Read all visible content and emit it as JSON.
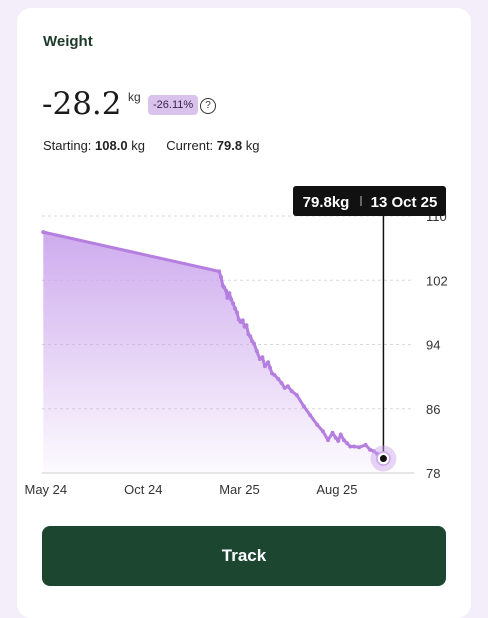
{
  "header": {
    "title": "Weight"
  },
  "summary": {
    "change": "-28.2",
    "unit": "kg",
    "change_percent": "-26.11%",
    "help_icon": "help-circle-icon",
    "starting_label": "Starting:",
    "starting_value": "108.0",
    "current_label": "Current:",
    "current_value": "79.8",
    "value_unit": "kg"
  },
  "tooltip": {
    "value": "79.8kg",
    "date": "13 Oct 25"
  },
  "colors": {
    "line": "#b57fe0",
    "fill": "#c9a2ec",
    "button": "#1c4630",
    "badge": "#d9c3ec",
    "title": "#1e3b29"
  },
  "chart_data": {
    "type": "area",
    "title": "",
    "xlabel": "",
    "ylabel": "",
    "ylim": [
      78,
      110
    ],
    "y_ticks": [
      110,
      102,
      94,
      86,
      78
    ],
    "x_tick_labels": [
      "May 24",
      "Oct 24",
      "Mar 25",
      "Aug 25"
    ],
    "x_tick_dates": [
      "2024-05-01",
      "2024-10-01",
      "2025-03-01",
      "2025-08-01"
    ],
    "x_range": [
      "2024-04-25",
      "2025-11-30"
    ],
    "series": [
      {
        "x": [
          "2024-04-27",
          "2025-01-28",
          "2025-01-31",
          "2025-02-03",
          "2025-02-05",
          "2025-02-08",
          "2025-02-10",
          "2025-02-13",
          "2025-02-16",
          "2025-02-19",
          "2025-02-22",
          "2025-02-25",
          "2025-02-28",
          "2025-03-03",
          "2025-03-06",
          "2025-03-09",
          "2025-03-12",
          "2025-03-15",
          "2025-03-18",
          "2025-03-21",
          "2025-03-24",
          "2025-03-28",
          "2025-04-02",
          "2025-04-06",
          "2025-04-10",
          "2025-04-15",
          "2025-04-18",
          "2025-04-21",
          "2025-04-25",
          "2025-05-01",
          "2025-05-06",
          "2025-05-11",
          "2025-05-16",
          "2025-05-22",
          "2025-05-30",
          "2025-06-10",
          "2025-06-20",
          "2025-07-01",
          "2025-07-10",
          "2025-07-18",
          "2025-07-25",
          "2025-07-30",
          "2025-08-03",
          "2025-08-07",
          "2025-08-12",
          "2025-08-17",
          "2025-08-22",
          "2025-08-28",
          "2025-09-05",
          "2025-09-15",
          "2025-09-22",
          "2025-09-28",
          "2025-10-03",
          "2025-10-08",
          "2025-10-13"
        ],
        "values": [
          108.0,
          103.1,
          102.4,
          101.3,
          101.1,
          100.7,
          99.8,
          100.4,
          99.6,
          99.1,
          98.5,
          98.0,
          97.1,
          96.8,
          97.0,
          96.2,
          96.4,
          95.3,
          95.0,
          94.4,
          94.1,
          93.2,
          92.2,
          92.4,
          91.3,
          91.8,
          91.1,
          90.4,
          90.2,
          89.7,
          89.2,
          88.6,
          88.8,
          88.2,
          87.7,
          86.3,
          85.2,
          84.0,
          83.2,
          82.1,
          83.0,
          82.4,
          82.0,
          82.8,
          82.1,
          81.7,
          81.3,
          81.3,
          81.2,
          81.5,
          80.9,
          80.7,
          80.4,
          79.9,
          79.8
        ]
      }
    ],
    "grid": true,
    "legend": "none"
  },
  "button": {
    "label": "Track"
  }
}
